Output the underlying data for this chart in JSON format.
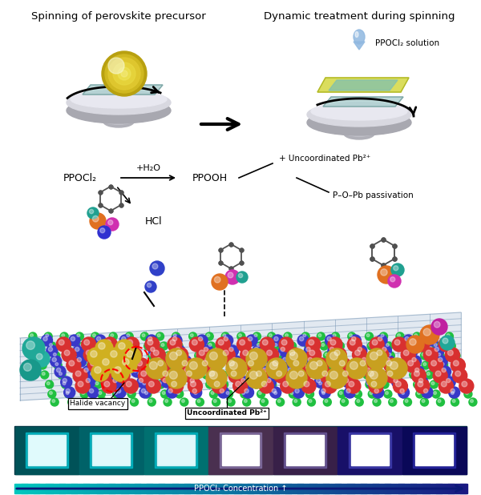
{
  "title_left": "Spinning of perovskite precursor",
  "title_right": "Dynamic treatment during spinning",
  "drop_label": "PPOCl₂ solution",
  "chem_eq_1": "PPOCl₂",
  "chem_eq_2": "+H₂O",
  "chem_eq_3": "PPOOH",
  "chem_eq_4": "+ Uncoordinated Pb²⁺",
  "chem_eq_5": "P–O–Pb passivation",
  "chem_hcl": "HCl",
  "label_halide": "Halide vacancy",
  "label_uncoord": "Uncoordinated Pb²⁺",
  "arrow_bar_label": "PPOCl₂ Concentration ↑",
  "bg_color": "#ffffff"
}
